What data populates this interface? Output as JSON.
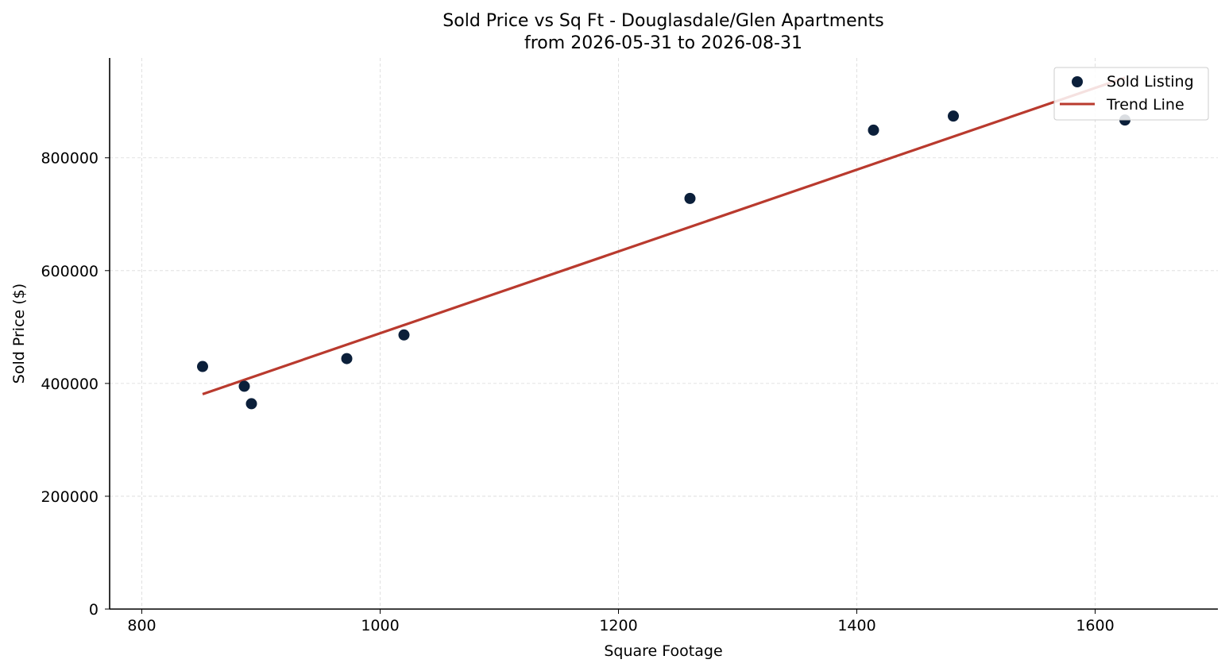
{
  "chart_data": {
    "type": "scatter",
    "title": "Sold Price vs Sq Ft - Douglasdale/Glen Apartments",
    "subtitle": "from 2026-05-31 to 2026-08-31",
    "xlabel": "Square Footage",
    "ylabel": "Sold Price ($)",
    "xlim": [
      773,
      1703
    ],
    "ylim": [
      0,
      977000
    ],
    "xticks": [
      800,
      1000,
      1200,
      1400,
      1600
    ],
    "yticks": [
      0,
      200000,
      400000,
      600000,
      800000
    ],
    "grid": true,
    "legend_position": "top-right",
    "series": [
      {
        "name": "Sold Listing",
        "kind": "scatter",
        "color": "#0b1f3a",
        "x": [
          851,
          886,
          892,
          972,
          1020,
          1260,
          1414,
          1481,
          1625
        ],
        "y": [
          430000,
          395000,
          364000,
          444000,
          486000,
          728000,
          849000,
          874000,
          867000
        ]
      },
      {
        "name": "Trend Line",
        "kind": "line",
        "color": "#b93a2e",
        "x": [
          851,
          1625
        ],
        "y": [
          381000,
          942000
        ]
      }
    ]
  }
}
